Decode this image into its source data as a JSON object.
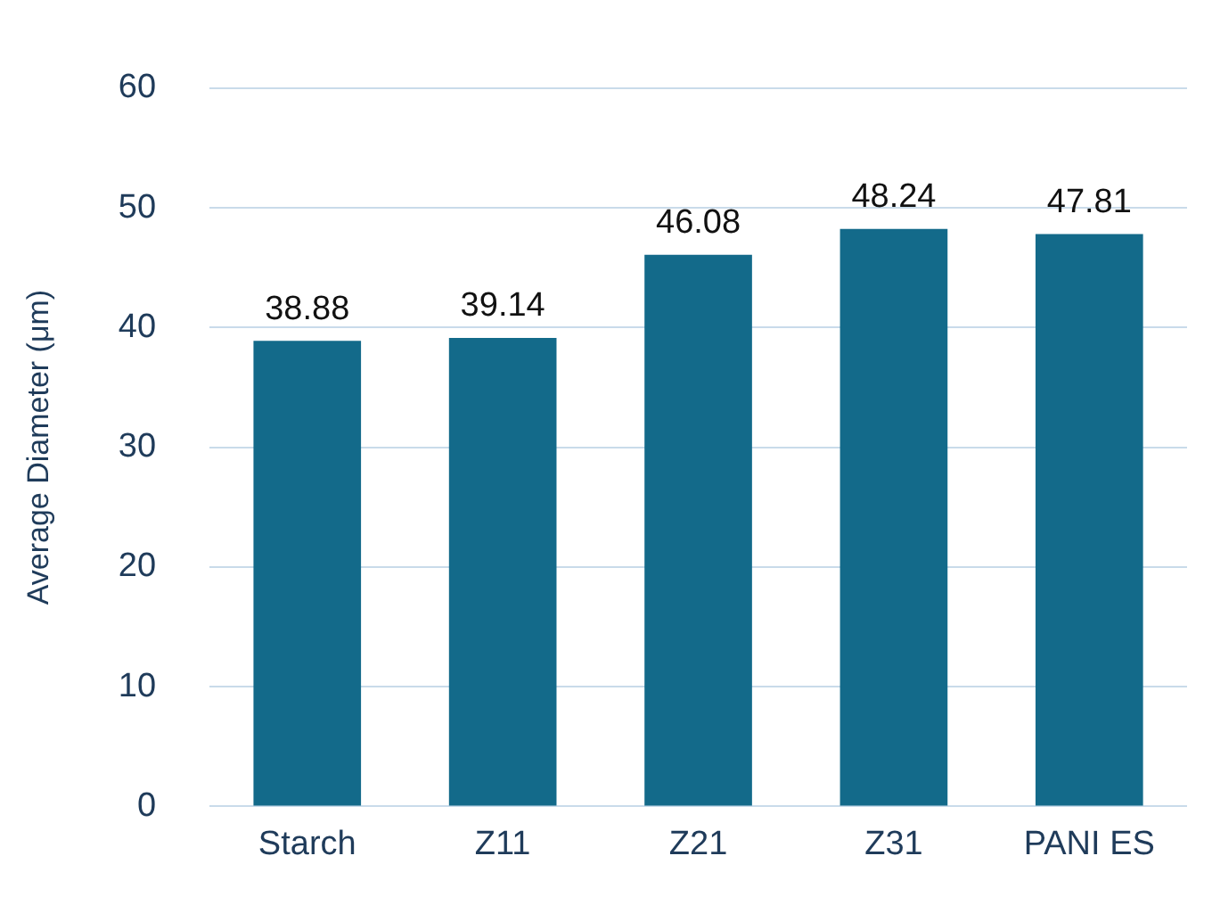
{
  "chart_data": {
    "type": "bar",
    "ylabel": "Average Diameter (μm)",
    "categories": [
      "Starch",
      "Z11",
      "Z21",
      "Z31",
      "PANI ES"
    ],
    "values": [
      38.88,
      39.14,
      46.08,
      48.24,
      47.81
    ],
    "color": "#136a8a",
    "ylim": [
      0,
      60
    ],
    "yticks": [
      0,
      10,
      20,
      30,
      40,
      50,
      60
    ],
    "grid": "y",
    "data_labels": true,
    "legend": false
  }
}
